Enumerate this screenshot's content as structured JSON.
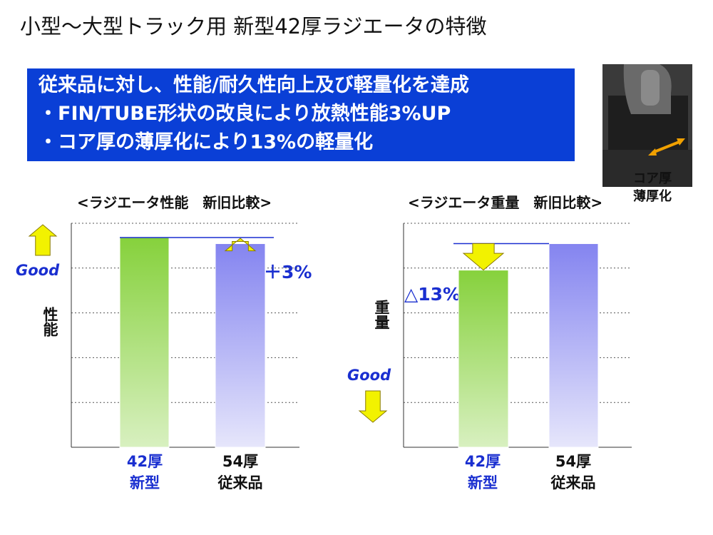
{
  "page": {
    "title": "小型〜大型トラック用 新型42厚ラジエータの特徴",
    "banner_lines": [
      "従来品に対し、性能/耐久性向上及び軽量化を達成",
      "・FIN/TUBE形状の改良により放熱性能3%UP",
      "・コア厚の薄厚化により13%の軽量化"
    ],
    "photo_label_lines": [
      "コア厚",
      "薄厚化"
    ]
  },
  "colors": {
    "banner": "#0a3fd6",
    "new_bar": "#8bd444",
    "old_bar": "#8f8ff2",
    "arrow": "#f2f200",
    "accent": "#1a2fd0"
  },
  "chart_data": [
    {
      "type": "bar",
      "title": "<ラジエータ性能　新旧比較>",
      "ylabel": "性能",
      "good_label": "Good",
      "good_direction": "up",
      "categories": [
        [
          "42厚",
          "新型"
        ],
        [
          "54厚",
          "従来品"
        ]
      ],
      "values": [
        103,
        100
      ],
      "ylim": [
        0,
        110
      ],
      "gridlines": [
        22,
        44,
        66,
        88,
        110
      ],
      "annotation": "＋3%",
      "grid": true
    },
    {
      "type": "bar",
      "title": "<ラジエータ重量　新旧比較>",
      "ylabel": "重量",
      "good_label": "Good",
      "good_direction": "down",
      "categories": [
        [
          "42厚",
          "新型"
        ],
        [
          "54厚",
          "従来品"
        ]
      ],
      "values": [
        87,
        100
      ],
      "ylim": [
        0,
        110
      ],
      "gridlines": [
        22,
        44,
        66,
        88,
        110
      ],
      "annotation": "△13%",
      "grid": true
    }
  ]
}
